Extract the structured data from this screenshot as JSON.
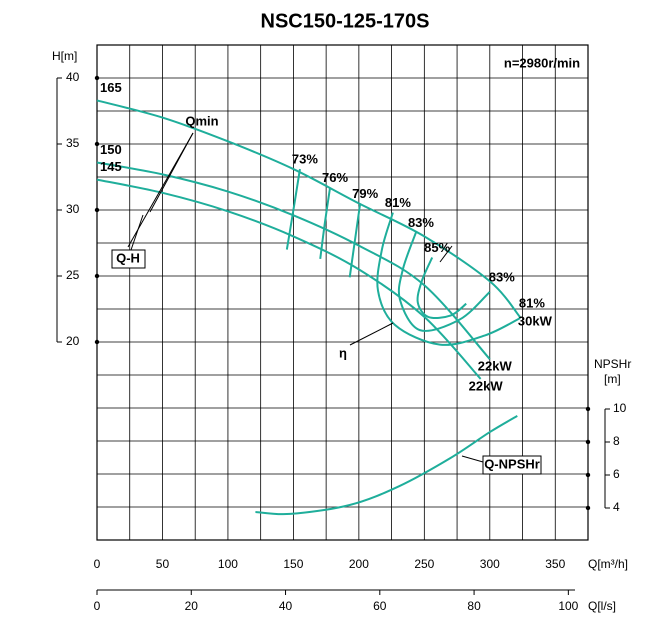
{
  "chart_data": {
    "type": "line",
    "title": "NSC150-125-170S",
    "subtitle": "n=2980r/min",
    "x_label": "Q[m³/h]",
    "x2_label": "Q[l/s]",
    "y_label": "H[m]",
    "y2_label": [
      "NPSHr",
      "[m]"
    ],
    "xlim": [
      0,
      375
    ],
    "xticks": [
      0,
      50,
      100,
      150,
      200,
      250,
      300,
      350
    ],
    "xgrid": [
      0,
      25,
      50,
      75,
      100,
      125,
      150,
      175,
      200,
      225,
      250,
      275,
      300,
      325,
      350,
      375
    ],
    "x2lim": [
      0,
      104.17
    ],
    "x2ticks": [
      0,
      20,
      40,
      60,
      80,
      100
    ],
    "ylim": [
      5,
      42.5
    ],
    "yticks": [
      20,
      25,
      30,
      35,
      40
    ],
    "ygrid": [
      5,
      7.5,
      10,
      12.5,
      15,
      17.5,
      20,
      22.5,
      25,
      27.5,
      30,
      32.5,
      35,
      37.5,
      40,
      42.5
    ],
    "y2lim": [
      2.06,
      32.06
    ],
    "y2ticks": [
      4,
      6,
      8,
      10
    ],
    "grid": true,
    "series": [
      {
        "name": "165",
        "color": "#1fae9b",
        "power": "30kW",
        "x": [
          0,
          50,
          100,
          150,
          200,
          250,
          300,
          323
        ],
        "values": [
          38.3,
          37.0,
          35.2,
          33.1,
          30.5,
          28.0,
          24.6,
          21.9
        ]
      },
      {
        "name": "150",
        "color": "#1fae9b",
        "power": "22kW",
        "x": [
          0,
          50,
          100,
          150,
          200,
          250,
          300
        ],
        "values": [
          33.6,
          32.7,
          31.4,
          29.6,
          27.3,
          24.3,
          18.7
        ]
      },
      {
        "name": "145",
        "color": "#1fae9b",
        "power": "22kW",
        "x": [
          0,
          50,
          100,
          150,
          200,
          250,
          293
        ],
        "values": [
          32.3,
          31.3,
          29.9,
          28.0,
          25.5,
          21.9,
          17.2
        ]
      },
      {
        "name": "Q-NPSHr",
        "color": "#1fae9b",
        "axis": "y2",
        "x": [
          121,
          147.5,
          193,
          231,
          270,
          300,
          321
        ],
        "values": [
          3.76,
          3.64,
          4.18,
          5.33,
          7.03,
          8.6,
          9.58
        ]
      }
    ],
    "efficiency": [
      {
        "labels": [
          "73%"
        ],
        "x": [
          155,
          150,
          145
        ],
        "values": [
          33.1,
          30.0,
          27.0
        ]
      },
      {
        "labels": [
          "76%"
        ],
        "x": [
          178,
          174,
          170.5
        ],
        "values": [
          31.7,
          29.0,
          26.3
        ]
      },
      {
        "labels": [
          "79%"
        ],
        "x": [
          201,
          197,
          193
        ],
        "values": [
          30.5,
          27.7,
          24.9
        ]
      },
      {
        "labels": [
          "81%",
          "81%"
        ],
        "x": [
          226,
          217.6,
          214.6,
          227.5,
          261.9,
          296.3,
          323
        ],
        "values": [
          29.8,
          27.0,
          23.9,
          21.3,
          19.8,
          20.5,
          21.8
        ]
      },
      {
        "labels": [
          "83%",
          "83%"
        ],
        "x": [
          243.6,
          233.6,
          231.4,
          246.6,
          277,
          300
        ],
        "values": [
          28.3,
          25.5,
          23.2,
          20.9,
          21.7,
          23.8
        ]
      },
      {
        "labels": [
          "85%"
        ],
        "x": [
          256,
          248,
          245,
          253,
          270,
          282
        ],
        "values": [
          26.4,
          24.6,
          23.0,
          21.9,
          22.0,
          22.9
        ]
      }
    ],
    "annotations": [
      "Qmin",
      "Q-H",
      "η"
    ]
  }
}
